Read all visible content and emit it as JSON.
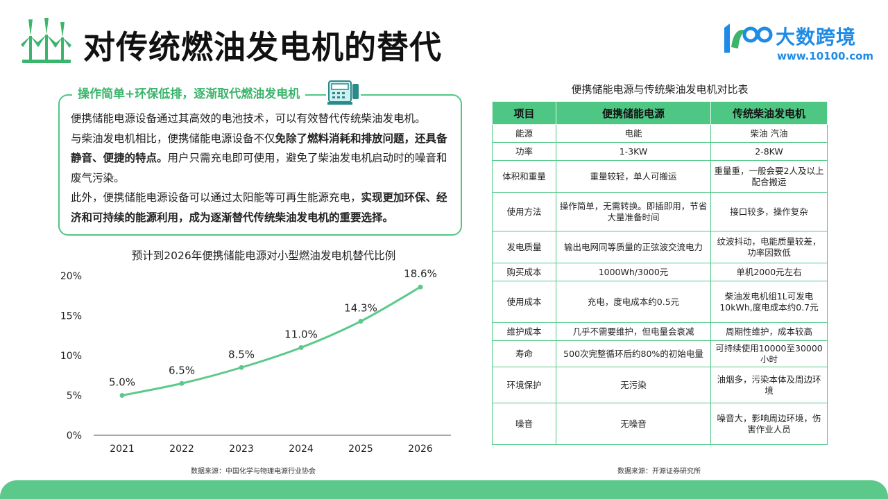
{
  "header": {
    "title": "对传统燃油发电机的替代",
    "brand_name": "大数跨境",
    "brand_url": "www.10100.com",
    "title_icon": "wind-turbine-icon",
    "brand_color": "#1e8be6",
    "accent_color": "#4ec785"
  },
  "intro": {
    "heading": "操作简单+环保低排，逐渐取代燃油发电机",
    "heading_icon": "cashier-machine-icon",
    "paragraphs": [
      {
        "pre": "便携储能电源设备通过其高效的电池技术，可以有效替代传统柴油发电机。",
        "bold": "",
        "post": ""
      },
      {
        "pre": "与柴油发电机相比，便携储能电源设备不仅",
        "bold": "免除了燃料消耗和排放问题，还具备静音、便捷的特点。",
        "post": "用户只需充电即可使用，避免了柴油发电机启动时的噪音和废气污染。"
      },
      {
        "pre": "此外，便携储能电源设备可以通过太阳能等可再生能源充电，",
        "bold": "实现更加环保、经济和可持续的能源利用，成为逐渐替代传统柴油发电机的重要选择。",
        "post": ""
      }
    ]
  },
  "chart_data": {
    "type": "line",
    "title": "预计到2026年便携储能电源对小型燃油发电机替代比例",
    "xlabel": "",
    "ylabel": "",
    "categories": [
      "2021",
      "2022",
      "2023",
      "2024",
      "2025",
      "2026"
    ],
    "values": [
      5.0,
      6.5,
      8.5,
      11.0,
      14.3,
      18.6
    ],
    "data_labels": [
      "5.0%",
      "6.5%",
      "8.5%",
      "11.0%",
      "14.3%",
      "18.6%"
    ],
    "y_ticks": [
      "0%",
      "5%",
      "10%",
      "15%",
      "20%"
    ],
    "ylim": [
      0,
      20
    ],
    "grid": false,
    "line_color": "#5cc98a",
    "source": "数据来源：中国化学与物理电源行业协会"
  },
  "table": {
    "title": "便携储能电源与传统柴油发电机对比表",
    "headers": [
      "项目",
      "便携储能电源",
      "传统柴油发电机"
    ],
    "rows": [
      [
        "能源",
        "电能",
        "柴油 汽油"
      ],
      [
        "功率",
        "1-3KW",
        "2-8KW"
      ],
      [
        "体积和重量",
        "重量较轻，单人可搬运",
        "重量重，一般会要2人及以上配合搬运"
      ],
      [
        "使用方法",
        "操作简单，无需转换。即插即用，节省大量准备时间",
        "接口较多，操作复杂"
      ],
      [
        "发电质量",
        "输出电网同等质量的正弦波交流电力",
        "纹波抖动，电能质量较差，功率因数低"
      ],
      [
        "购买成本",
        "1000Wh/3000元",
        "单机2000元左右"
      ],
      [
        "使用成本",
        "充电，度电成本约0.5元",
        "柴油发电机组1L可发电10kWh,度电成本约0.7元"
      ],
      [
        "维护成本",
        "几乎不需要维护，但电量会衰减",
        "周期性维护，成本较高"
      ],
      [
        "寿命",
        "500次完整循环后约80%的初始电量",
        "可持续使用10000至30000小时"
      ],
      [
        "环境保护",
        "无污染",
        "油烟多，污染本体及周边环境"
      ],
      [
        "噪音",
        "无噪音",
        "噪音大，影响周边环境，伤害作业人员"
      ]
    ],
    "source": "数据来源：开源证券研究所"
  }
}
